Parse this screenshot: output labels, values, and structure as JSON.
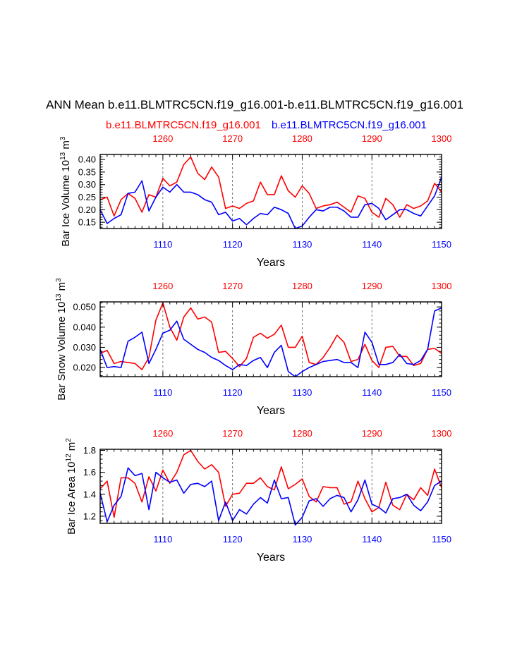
{
  "page": {
    "title": "ANN Mean b.e11.BLMTRC5CN.f19_g16.001-b.e11.BLMTRC5CN.f19_g16.001",
    "legend_red": "b.e11.BLMTRC5CN.f19_g16.001",
    "legend_blue": "b.e11.BLMTRC5CN.f19_g16.001"
  },
  "colors": {
    "red": "#ff0000",
    "blue": "#0000ff",
    "axis": "#000000"
  },
  "chart_data": [
    {
      "type": "line",
      "ylabel": "Bar Ice Volume 10",
      "ylabel_exp": "13",
      "ylabel_unit": " m",
      "ylabel_unit_exp": "3",
      "xlabel": "Years",
      "xlim": [
        1101,
        1150
      ],
      "ylim": [
        0.125,
        0.42
      ],
      "yticks": [
        0.15,
        0.2,
        0.25,
        0.3,
        0.35,
        0.4
      ],
      "yticklabels": [
        "0.15",
        "0.20",
        "0.25",
        "0.30",
        "0.35",
        "0.40"
      ],
      "bottom_ticks": [
        1110,
        1120,
        1130,
        1140,
        1150
      ],
      "top_ticks": [
        1260,
        1270,
        1280,
        1290,
        1300
      ],
      "top_offset": 150,
      "series": [
        {
          "name": "b.e11.BLMTRC5CN.f19_g16.001",
          "color": "red",
          "values": [
            0.24,
            0.25,
            0.175,
            0.24,
            0.265,
            0.245,
            0.19,
            0.26,
            0.25,
            0.325,
            0.295,
            0.31,
            0.38,
            0.41,
            0.345,
            0.32,
            0.37,
            0.33,
            0.205,
            0.215,
            0.205,
            0.225,
            0.235,
            0.31,
            0.26,
            0.26,
            0.335,
            0.275,
            0.25,
            0.295,
            0.265,
            0.205,
            0.215,
            0.22,
            0.23,
            0.21,
            0.19,
            0.255,
            0.245,
            0.19,
            0.17,
            0.245,
            0.22,
            0.17,
            0.22,
            0.205,
            0.215,
            0.235,
            0.305,
            0.27
          ]
        },
        {
          "name": "b.e11.BLMTRC5CN.f19_g16.001",
          "color": "blue",
          "values": [
            0.2,
            0.145,
            0.165,
            0.18,
            0.265,
            0.27,
            0.315,
            0.195,
            0.25,
            0.29,
            0.27,
            0.3,
            0.27,
            0.27,
            0.26,
            0.24,
            0.23,
            0.18,
            0.19,
            0.155,
            0.165,
            0.14,
            0.165,
            0.185,
            0.18,
            0.21,
            0.2,
            0.185,
            0.125,
            0.135,
            0.17,
            0.2,
            0.195,
            0.21,
            0.21,
            0.195,
            0.17,
            0.17,
            0.22,
            0.225,
            0.205,
            0.16,
            0.18,
            0.2,
            0.2,
            0.185,
            0.175,
            0.215,
            0.255,
            0.33
          ]
        }
      ]
    },
    {
      "type": "line",
      "ylabel": "Bar Snow Volume 10",
      "ylabel_exp": "13",
      "ylabel_unit": " m",
      "ylabel_unit_exp": "3",
      "xlabel": "Years",
      "xlim": [
        1101,
        1150
      ],
      "ylim": [
        0.0155,
        0.0525
      ],
      "yticks": [
        0.02,
        0.03,
        0.04,
        0.05
      ],
      "yticklabels": [
        "0.020",
        "0.030",
        "0.040",
        "0.050"
      ],
      "bottom_ticks": [
        1110,
        1120,
        1130,
        1140,
        1150
      ],
      "top_ticks": [
        1260,
        1270,
        1280,
        1290,
        1300
      ],
      "top_offset": 150,
      "series": [
        {
          "name": "b.e11.BLMTRC5CN.f19_g16.001",
          "color": "red",
          "values": [
            0.027,
            0.0285,
            0.022,
            0.023,
            0.0225,
            0.022,
            0.019,
            0.025,
            0.0435,
            0.052,
            0.04,
            0.0335,
            0.045,
            0.0495,
            0.044,
            0.045,
            0.0425,
            0.0275,
            0.028,
            0.0245,
            0.0205,
            0.0245,
            0.035,
            0.037,
            0.0345,
            0.0365,
            0.041,
            0.03,
            0.03,
            0.0355,
            0.0225,
            0.0215,
            0.025,
            0.03,
            0.036,
            0.0325,
            0.023,
            0.024,
            0.0315,
            0.0235,
            0.02,
            0.03,
            0.0305,
            0.0255,
            0.0255,
            0.021,
            0.022,
            0.029,
            0.0295,
            0.027
          ]
        },
        {
          "name": "b.e11.BLMTRC5CN.f19_g16.001",
          "color": "blue",
          "values": [
            0.029,
            0.02,
            0.0205,
            0.02,
            0.033,
            0.035,
            0.0375,
            0.022,
            0.029,
            0.037,
            0.0385,
            0.043,
            0.034,
            0.0315,
            0.029,
            0.0275,
            0.025,
            0.0235,
            0.021,
            0.019,
            0.0215,
            0.021,
            0.0235,
            0.025,
            0.02,
            0.0275,
            0.031,
            0.018,
            0.0155,
            0.018,
            0.02,
            0.0215,
            0.023,
            0.0235,
            0.024,
            0.0225,
            0.0225,
            0.02,
            0.0375,
            0.0325,
            0.0215,
            0.0215,
            0.0225,
            0.0265,
            0.022,
            0.0215,
            0.0235,
            0.029,
            0.048,
            0.0495
          ]
        }
      ]
    },
    {
      "type": "line",
      "ylabel": "Bar Ice Area 10",
      "ylabel_exp": "12",
      "ylabel_unit": " m",
      "ylabel_unit_exp": "2",
      "xlabel": "Years",
      "xlim": [
        1101,
        1150
      ],
      "ylim": [
        1.135,
        1.81
      ],
      "yticks": [
        1.2,
        1.4,
        1.6,
        1.8
      ],
      "yticklabels": [
        "1.2",
        "1.4",
        "1.6",
        "1.8"
      ],
      "bottom_ticks": [
        1110,
        1120,
        1130,
        1140,
        1150
      ],
      "top_ticks": [
        1260,
        1270,
        1280,
        1290,
        1300
      ],
      "top_offset": 150,
      "series": [
        {
          "name": "b.e11.BLMTRC5CN.f19_g16.001",
          "color": "red",
          "values": [
            1.45,
            1.52,
            1.19,
            1.55,
            1.55,
            1.5,
            1.33,
            1.56,
            1.43,
            1.62,
            1.5,
            1.6,
            1.76,
            1.8,
            1.7,
            1.63,
            1.67,
            1.6,
            1.29,
            1.4,
            1.41,
            1.5,
            1.5,
            1.55,
            1.47,
            1.44,
            1.65,
            1.45,
            1.49,
            1.54,
            1.38,
            1.33,
            1.47,
            1.46,
            1.46,
            1.31,
            1.33,
            1.52,
            1.36,
            1.24,
            1.28,
            1.51,
            1.3,
            1.26,
            1.4,
            1.35,
            1.46,
            1.39,
            1.63,
            1.46
          ]
        },
        {
          "name": "b.e11.BLMTRC5CN.f19_g16.001",
          "color": "blue",
          "values": [
            1.41,
            1.15,
            1.3,
            1.38,
            1.64,
            1.57,
            1.59,
            1.26,
            1.6,
            1.55,
            1.51,
            1.53,
            1.41,
            1.49,
            1.5,
            1.47,
            1.52,
            1.16,
            1.33,
            1.16,
            1.26,
            1.22,
            1.31,
            1.37,
            1.32,
            1.53,
            1.36,
            1.37,
            1.12,
            1.19,
            1.34,
            1.36,
            1.29,
            1.36,
            1.39,
            1.37,
            1.24,
            1.35,
            1.53,
            1.31,
            1.28,
            1.23,
            1.36,
            1.37,
            1.4,
            1.3,
            1.25,
            1.33,
            1.48,
            1.52
          ]
        }
      ]
    }
  ]
}
